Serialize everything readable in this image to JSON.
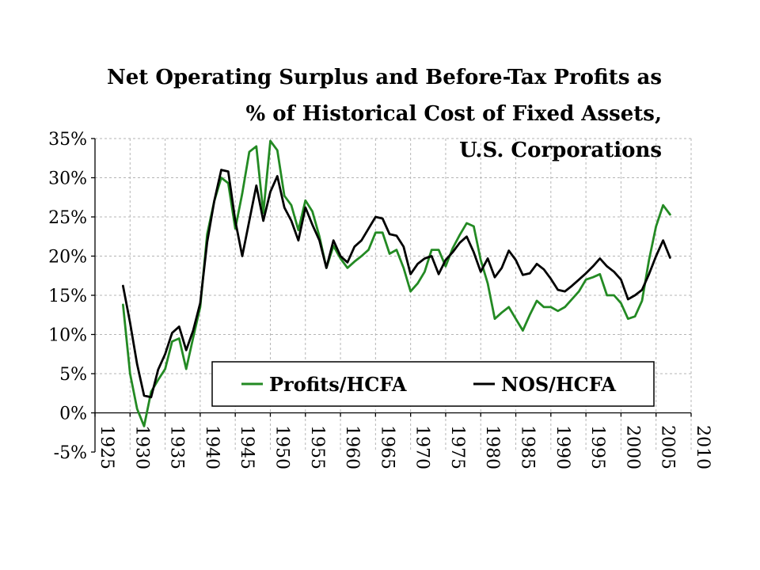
{
  "chart_data": {
    "type": "line",
    "title_lines": [
      "Net Operating Surplus and Before-Tax Profits as",
      "% of Historical Cost of Fixed Assets,",
      "U.S. Corporations"
    ],
    "xlabel": "",
    "ylabel": "",
    "xlim": [
      1925,
      2010
    ],
    "ylim": [
      -5,
      35
    ],
    "x_ticks": [
      1925,
      1930,
      1935,
      1940,
      1945,
      1950,
      1955,
      1960,
      1965,
      1970,
      1975,
      1980,
      1985,
      1990,
      1995,
      2000,
      2005,
      2010
    ],
    "y_ticks": [
      -5,
      0,
      5,
      10,
      15,
      20,
      25,
      30,
      35
    ],
    "y_tick_labels": [
      "-5%",
      "0%",
      "5%",
      "10%",
      "15%",
      "20%",
      "25%",
      "30%",
      "35%"
    ],
    "grid": true,
    "legend_position": "bottom-right",
    "series": [
      {
        "name": "Profits/HCFA",
        "color": "#238a23",
        "x": [
          1929,
          1930,
          1931,
          1932,
          1933,
          1934,
          1935,
          1936,
          1937,
          1938,
          1939,
          1940,
          1941,
          1942,
          1943,
          1944,
          1945,
          1946,
          1947,
          1948,
          1949,
          1950,
          1951,
          1952,
          1953,
          1954,
          1955,
          1956,
          1957,
          1958,
          1959,
          1960,
          1961,
          1962,
          1963,
          1964,
          1965,
          1966,
          1967,
          1968,
          1969,
          1970,
          1971,
          1972,
          1973,
          1974,
          1975,
          1976,
          1977,
          1978,
          1979,
          1980,
          1981,
          1982,
          1983,
          1984,
          1985,
          1986,
          1987,
          1988,
          1989,
          1990,
          1991,
          1992,
          1993,
          1994,
          1995,
          1996,
          1997,
          1998,
          1999,
          2000,
          2001,
          2002,
          2003,
          2004,
          2005,
          2006,
          2007
        ],
        "values": [
          13.8,
          5.0,
          0.5,
          -1.7,
          2.7,
          4.2,
          5.6,
          9.1,
          9.5,
          5.6,
          9.6,
          13.5,
          22.8,
          27.0,
          30.0,
          29.3,
          23.5,
          28.0,
          33.3,
          34.0,
          25.5,
          34.7,
          33.5,
          27.7,
          26.5,
          23.3,
          27.1,
          25.7,
          22.5,
          18.5,
          21.3,
          19.7,
          18.5,
          19.3,
          20.0,
          20.8,
          23.0,
          23.0,
          20.3,
          20.8,
          18.5,
          15.5,
          16.5,
          18.0,
          20.8,
          20.8,
          18.7,
          21.0,
          22.7,
          24.2,
          23.8,
          19.5,
          16.5,
          12.0,
          12.8,
          13.5,
          12.0,
          10.5,
          12.5,
          14.3,
          13.5,
          13.5,
          13.0,
          13.5,
          14.5,
          15.5,
          17.0,
          17.3,
          17.7,
          15.0,
          15.0,
          14.0,
          12.0,
          12.3,
          14.3,
          19.5,
          23.8,
          26.5,
          25.3
        ]
      },
      {
        "name": "NOS/HCFA",
        "color": "#000000",
        "x": [
          1929,
          1930,
          1931,
          1932,
          1933,
          1934,
          1935,
          1936,
          1937,
          1938,
          1939,
          1940,
          1941,
          1942,
          1943,
          1944,
          1945,
          1946,
          1947,
          1948,
          1949,
          1950,
          1951,
          1952,
          1953,
          1954,
          1955,
          1956,
          1957,
          1958,
          1959,
          1960,
          1961,
          1962,
          1963,
          1964,
          1965,
          1966,
          1967,
          1968,
          1969,
          1970,
          1971,
          1972,
          1973,
          1974,
          1975,
          1976,
          1977,
          1978,
          1979,
          1980,
          1981,
          1982,
          1983,
          1984,
          1985,
          1986,
          1987,
          1988,
          1989,
          1990,
          1991,
          1992,
          1993,
          1994,
          1995,
          1996,
          1997,
          1998,
          1999,
          2000,
          2001,
          2002,
          2003,
          2004,
          2005,
          2006,
          2007
        ],
        "values": [
          16.2,
          11.5,
          6.2,
          2.2,
          2.0,
          5.5,
          7.5,
          10.2,
          11.0,
          8.0,
          10.5,
          14.0,
          21.8,
          27.0,
          31.0,
          30.8,
          24.5,
          20.0,
          24.5,
          29.0,
          24.5,
          28.2,
          30.2,
          26.2,
          24.5,
          22.0,
          26.2,
          24.0,
          22.0,
          18.5,
          22.0,
          20.0,
          19.2,
          21.2,
          22.0,
          23.5,
          25.0,
          24.8,
          22.8,
          22.6,
          21.2,
          17.7,
          19.0,
          19.7,
          20.0,
          17.7,
          19.5,
          20.5,
          21.7,
          22.5,
          20.5,
          18.0,
          19.7,
          17.3,
          18.5,
          20.7,
          19.5,
          17.6,
          17.8,
          19.0,
          18.3,
          17.1,
          15.7,
          15.5,
          16.2,
          17.0,
          17.8,
          18.7,
          19.7,
          18.7,
          18.0,
          17.0,
          14.5,
          15.0,
          15.7,
          17.7,
          20.0,
          22.0,
          19.8
        ]
      }
    ]
  }
}
